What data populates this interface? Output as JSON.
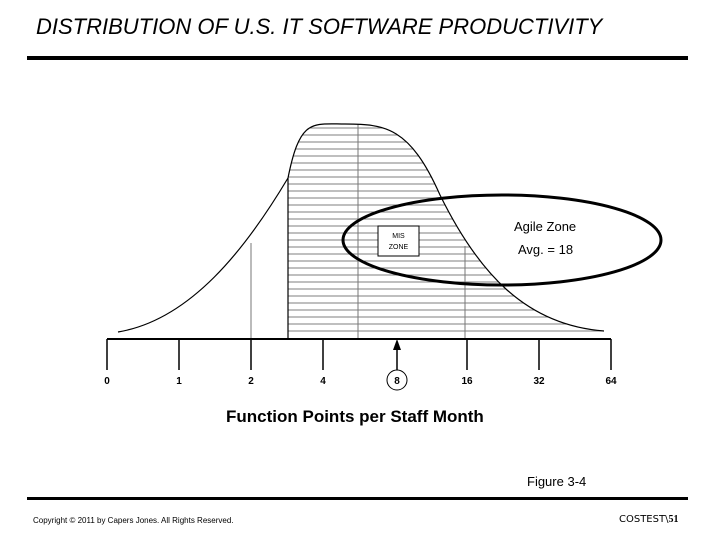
{
  "slide": {
    "title": "DISTRIBUTION OF U.S. IT SOFTWARE PRODUCTIVITY",
    "figure_caption": "Figure 3-4",
    "copyright": "Copyright © 2011 by Capers Jones. All Rights Reserved.",
    "slide_id_prefix": "COSTEST\\",
    "slide_number": "51"
  },
  "diagram": {
    "x_axis_label": "Function Points per Staff Month",
    "x_ticks": [
      "0",
      "1",
      "2",
      "4",
      "8",
      "16",
      "32",
      "64"
    ],
    "marker_value": "8",
    "mis_zone_label": [
      "MIS",
      "ZONE"
    ],
    "agile_zone_label": "Agile Zone",
    "agile_zone_avg": "Avg. = 18"
  }
}
